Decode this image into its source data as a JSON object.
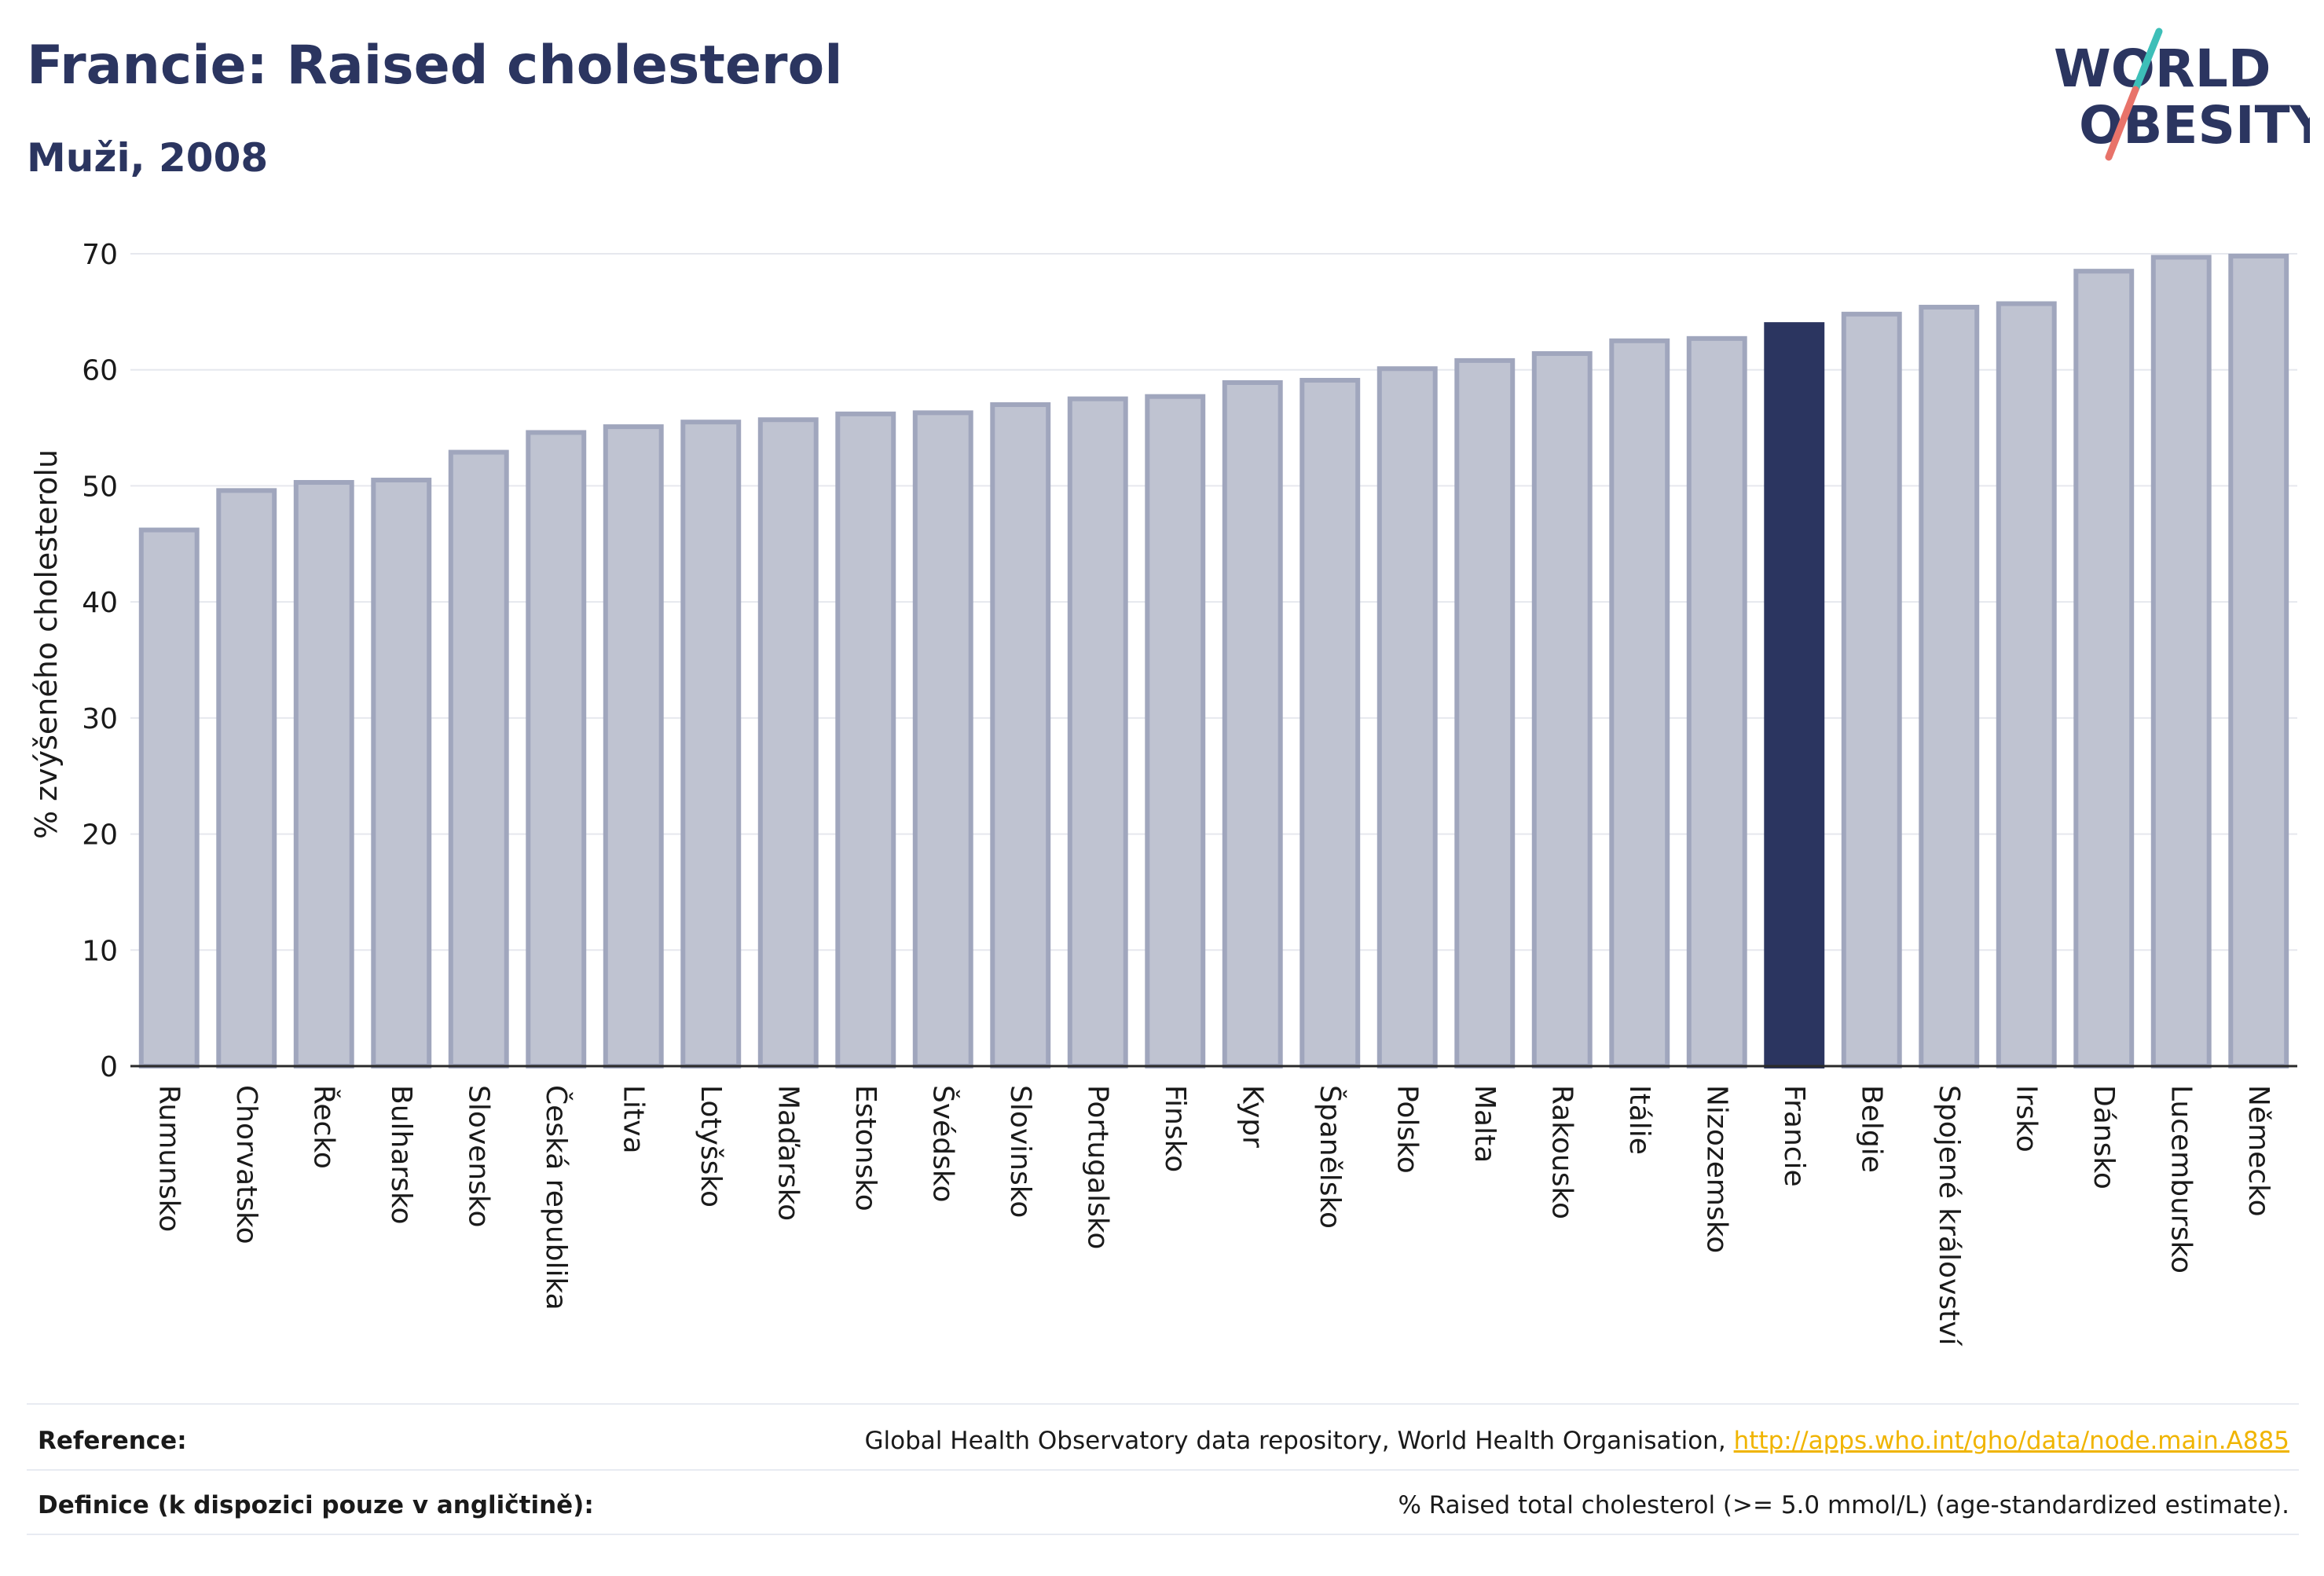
{
  "header": {
    "title": "Francie: Raised cholesterol",
    "subtitle": "Muži, 2008"
  },
  "logo": {
    "line1": "WORLD",
    "line2": "OBESITY"
  },
  "colors": {
    "highlight": "#2b3560",
    "bar": "#bfc3d1",
    "bar_border": "#a0a6bd",
    "accent_teal": "#3dbfb8",
    "accent_coral": "#e8736a"
  },
  "chart_data": {
    "type": "bar",
    "ylabel": "% zvýšeného cholesterolu",
    "ylim": [
      0,
      70
    ],
    "yticks": [
      0,
      10,
      20,
      30,
      40,
      50,
      60,
      70
    ],
    "grid": true,
    "highlight": "Francie",
    "categories": [
      "Rumunsko",
      "Chorvatsko",
      "Řecko",
      "Bulharsko",
      "Slovensko",
      "Česká republika",
      "Litva",
      "Lotyšsko",
      "Maďarsko",
      "Estonsko",
      "Švédsko",
      "Slovinsko",
      "Portugalsko",
      "Finsko",
      "Kypr",
      "Španělsko",
      "Polsko",
      "Malta",
      "Rakousko",
      "Itálie",
      "Nizozemsko",
      "Francie",
      "Belgie",
      "Spojené království",
      "Irsko",
      "Dánsko",
      "Lucembursko",
      "Německo"
    ],
    "values": [
      46.2,
      49.6,
      50.3,
      50.5,
      52.9,
      54.6,
      55.1,
      55.5,
      55.7,
      56.2,
      56.3,
      57.0,
      57.5,
      57.7,
      58.9,
      59.1,
      60.1,
      60.8,
      61.4,
      62.5,
      62.7,
      63.9,
      64.8,
      65.4,
      65.7,
      68.5,
      69.7,
      69.8
    ]
  },
  "footer": {
    "reference_label": "Reference:",
    "reference_text": "Global Health Observatory data repository, World Health Organisation, ",
    "reference_link": "http://apps.who.int/gho/data/node.main.A885",
    "definition_label": "Definice (k dispozici pouze v angličtině):",
    "definition_text": "% Raised total cholesterol (>= 5.0 mmol/L) (age-standardized estimate)."
  }
}
